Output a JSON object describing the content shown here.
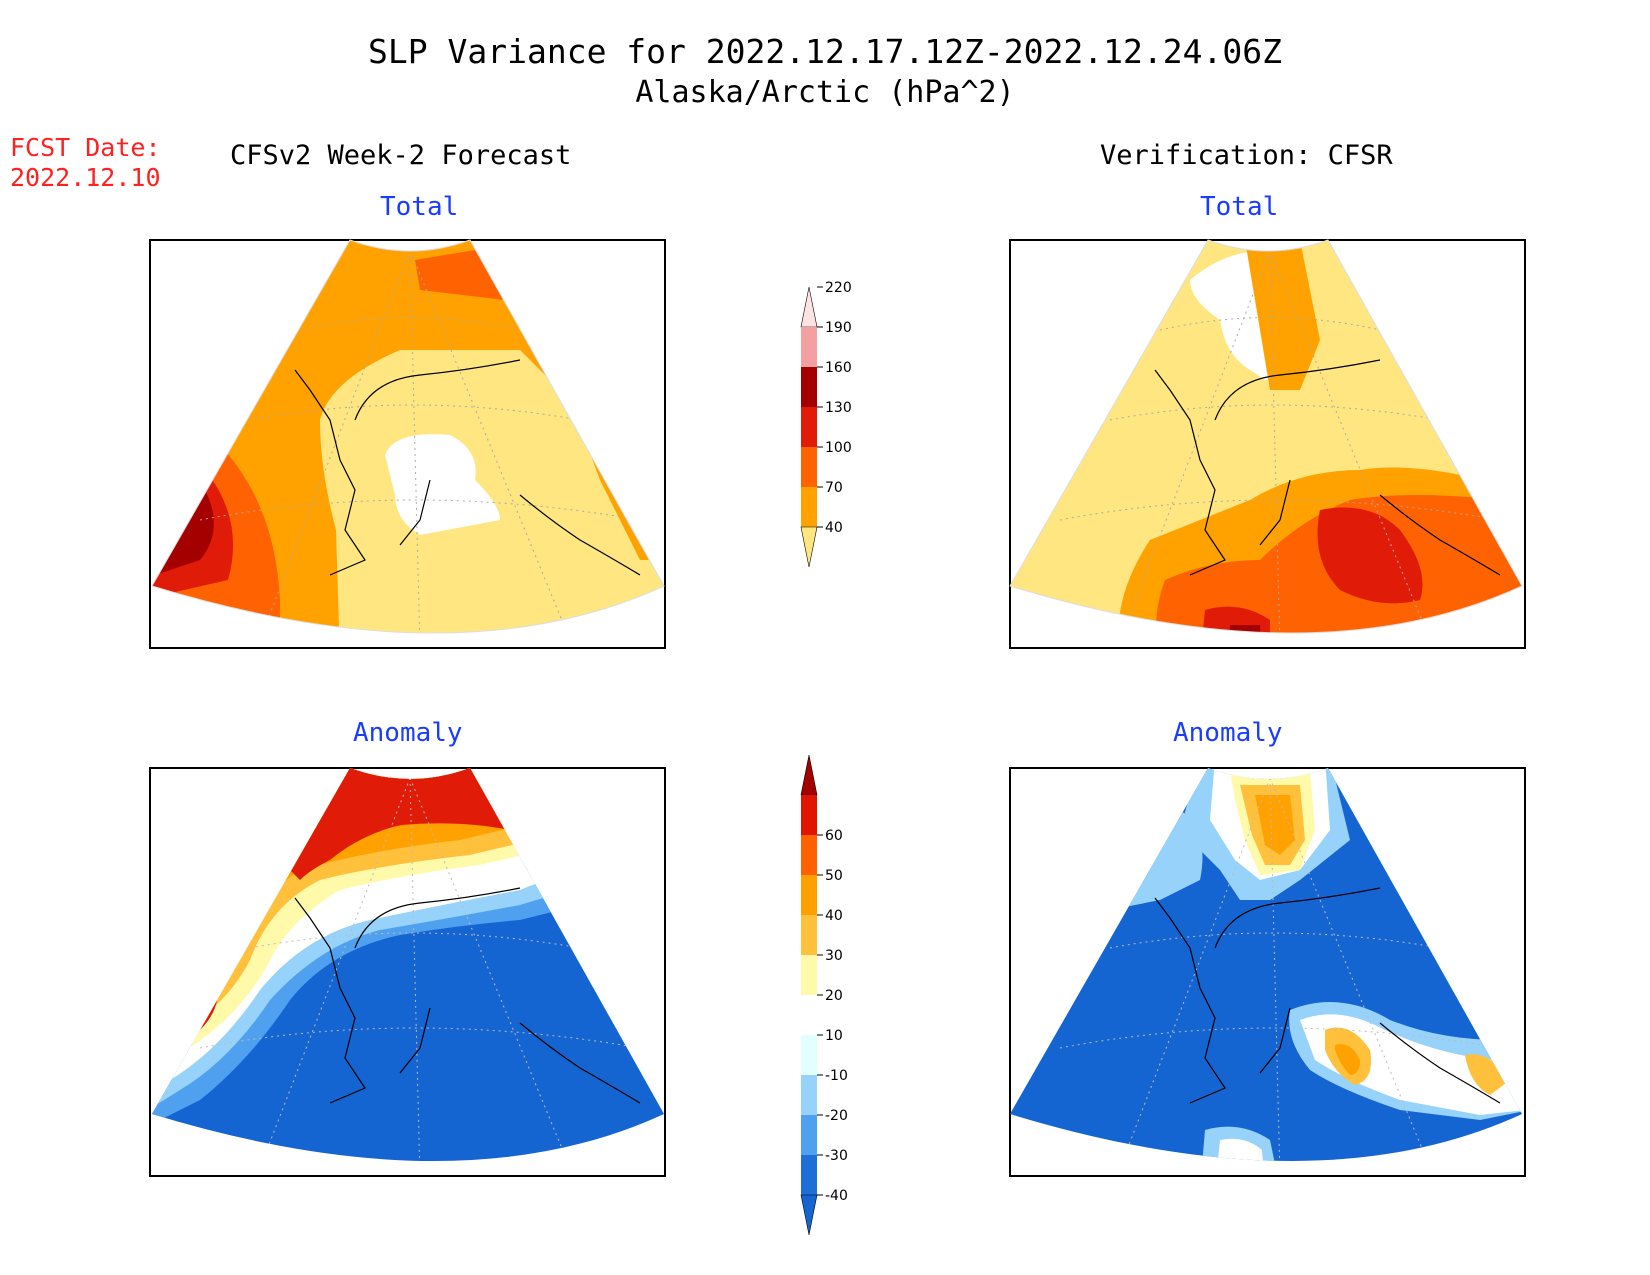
{
  "header": {
    "title": "SLP Variance for 2022.12.17.12Z-2022.12.24.06Z",
    "subtitle": "Alaska/Arctic (hPa^2)"
  },
  "forecast_date": {
    "label": "FCST Date:",
    "value": "2022.12.10"
  },
  "columns": {
    "left": "CFSv2 Week-2 Forecast",
    "right": "Verification: CFSR"
  },
  "panels": {
    "top_left": "Total",
    "top_right": "Total",
    "bottom_left": "Anomaly",
    "bottom_right": "Anomaly"
  },
  "colorbars": {
    "total": {
      "ticks": [
        "40",
        "70",
        "100",
        "130",
        "160",
        "190",
        "220"
      ],
      "colors": [
        "#ffe680",
        "#ffa200",
        "#ff6200",
        "#e01c08",
        "#a50000",
        "#f2a0a0",
        "#fde3e3"
      ]
    },
    "anomaly": {
      "ticks": [
        "-40",
        "-30",
        "-20",
        "-10",
        "10",
        "20",
        "30",
        "40",
        "50",
        "60"
      ],
      "colors": [
        "#1464d2",
        "#1e6ed8",
        "#50a0f0",
        "#96d2fa",
        "#e1ffff",
        "#ffffff",
        "#fffaaa",
        "#ffc03c",
        "#ffa000",
        "#ff6000",
        "#e11400",
        "#a50000"
      ]
    }
  }
}
